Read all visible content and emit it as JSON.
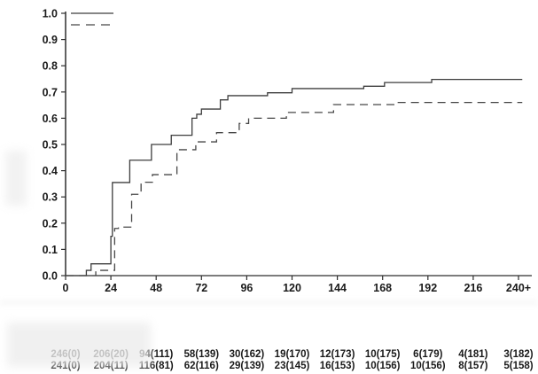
{
  "figure": {
    "background": "#ffffff",
    "text_color": "#1a1a1a",
    "axis_color": "#2e2e2e"
  },
  "chart_data": {
    "type": "line",
    "subtype": "kaplan-meier-step",
    "title": "",
    "xlabel": "",
    "ylabel": "",
    "xlim": [
      0,
      240
    ],
    "ylim": [
      0,
      1.0
    ],
    "grid": false,
    "x_ticks": [
      {
        "value": 0,
        "label": "0"
      },
      {
        "value": 24,
        "label": "24"
      },
      {
        "value": 48,
        "label": "48"
      },
      {
        "value": 72,
        "label": "72"
      },
      {
        "value": 96,
        "label": "96"
      },
      {
        "value": 120,
        "label": "120"
      },
      {
        "value": 144,
        "label": "144"
      },
      {
        "value": 168,
        "label": "168"
      },
      {
        "value": 192,
        "label": "192"
      },
      {
        "value": 216,
        "label": "216"
      },
      {
        "value": 240,
        "label": "240+"
      }
    ],
    "y_ticks": [
      {
        "value": 0.0,
        "label": "0.0"
      },
      {
        "value": 0.1,
        "label": "0.1"
      },
      {
        "value": 0.2,
        "label": "0.2"
      },
      {
        "value": 0.3,
        "label": "0.3"
      },
      {
        "value": 0.4,
        "label": "0.4"
      },
      {
        "value": 0.5,
        "label": "0.5"
      },
      {
        "value": 0.6,
        "label": "0.6"
      },
      {
        "value": 0.7,
        "label": "0.7"
      },
      {
        "value": 0.8,
        "label": "0.8"
      },
      {
        "value": 0.9,
        "label": "0.9"
      },
      {
        "value": 1.0,
        "label": "1.0"
      }
    ],
    "legend": {
      "position": "top-left",
      "entries": [
        {
          "name": "group-solid",
          "line_style": "solid",
          "color": "#3d3d3d",
          "label": ""
        },
        {
          "name": "group-dashed",
          "line_style": "dashed",
          "color": "#474747",
          "label": ""
        }
      ]
    },
    "series": [
      {
        "name": "group-solid",
        "line_style": "solid",
        "color": "#3d3d3d",
        "step_points": [
          [
            0,
            0
          ],
          [
            11,
            0.02
          ],
          [
            13.5,
            0.045
          ],
          [
            24,
            0.15
          ],
          [
            24.8,
            0.355
          ],
          [
            34,
            0.44
          ],
          [
            45.5,
            0.5
          ],
          [
            56,
            0.535
          ],
          [
            67,
            0.6
          ],
          [
            69.5,
            0.615
          ],
          [
            72,
            0.635
          ],
          [
            82,
            0.67
          ],
          [
            86,
            0.686
          ],
          [
            107,
            0.697
          ],
          [
            120,
            0.713
          ],
          [
            158,
            0.722
          ],
          [
            169,
            0.736
          ],
          [
            194,
            0.748
          ],
          [
            242,
            0.748
          ]
        ]
      },
      {
        "name": "group-dashed",
        "line_style": "dashed",
        "color": "#474747",
        "step_points": [
          [
            0,
            0
          ],
          [
            16,
            0.02
          ],
          [
            26,
            0.18
          ],
          [
            28,
            0.185
          ],
          [
            35,
            0.31
          ],
          [
            40,
            0.356
          ],
          [
            46,
            0.385
          ],
          [
            59,
            0.48
          ],
          [
            69,
            0.51
          ],
          [
            80,
            0.545
          ],
          [
            92,
            0.58
          ],
          [
            97,
            0.6
          ],
          [
            117,
            0.622
          ],
          [
            142,
            0.652
          ],
          [
            175,
            0.66
          ],
          [
            242,
            0.66
          ]
        ]
      }
    ],
    "numbers_at_risk": {
      "rows": [
        {
          "series": "group-solid",
          "values": [
            "246(0)",
            "206(20)",
            "94(111)",
            "58(139)",
            "30(162)",
            "19(170)",
            "12(173)",
            "10(175)",
            "6(179)",
            "4(181)",
            "3(182)"
          ]
        },
        {
          "series": "group-dashed",
          "values": [
            "241(0)",
            "204(11)",
            "116(81)",
            "62(116)",
            "29(139)",
            "23(145)",
            "16(153)",
            "10(156)",
            "10(156)",
            "8(157)",
            "5(158)"
          ]
        }
      ]
    }
  }
}
